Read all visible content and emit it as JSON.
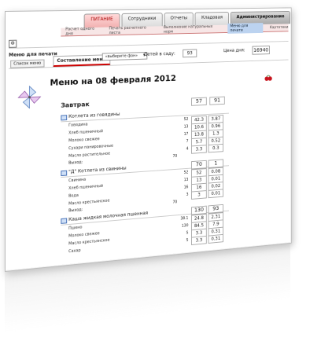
{
  "tabs": [
    {
      "label": "ПИТАНИЕ",
      "active": true
    },
    {
      "label": "Сотрудники"
    },
    {
      "label": "Отчеты"
    },
    {
      "label": "Кладовая"
    },
    {
      "label": "Администрирование",
      "admin": true
    }
  ],
  "subnav": [
    {
      "label": "Расчет одного дня"
    },
    {
      "label": "Печать расчетного листа"
    },
    {
      "label": "Выполнение натуральных норм"
    },
    {
      "label": "Меню для печати",
      "selected": true
    },
    {
      "label": "Картотеки"
    }
  ],
  "nav": {
    "section_label": "Меню для печати",
    "list_button": "Список меню",
    "compose_button": "Составление меню",
    "select_value": "«выберите фон»",
    "kids_label": "Детей в саду:",
    "kids_value": "93",
    "price_label": "Цена дня:",
    "price_value": "16940"
  },
  "menu": {
    "title": "Меню на 08 февраля 2012",
    "meal": "Завтрак",
    "header_values": [
      "57",
      "91"
    ],
    "dishes": [
      {
        "name": "Котлета из говядины",
        "values": [
          "",
          ""
        ],
        "rows": [
          {
            "name": "Говядина",
            "qty": "52",
            "v1": "42.3",
            "v2": "3.87"
          },
          {
            "name": "Хлеб пшеничный",
            "qty": "13",
            "v1": "10.6",
            "v2": "0.96"
          },
          {
            "name": "Молоко свежее",
            "qty": "17",
            "v1": "13.8",
            "v2": "1.3"
          },
          {
            "name": "Сухари панировочные",
            "qty": "7",
            "v1": "5.7",
            "v2": "0.52"
          },
          {
            "name": "Масло растительное",
            "qty": "4",
            "v1": "3.3",
            "v2": "0.3"
          }
        ],
        "output_label": "Выход:",
        "output_value": "70"
      },
      {
        "name": "\"Д\" Котлета из свинины",
        "values": [
          "70",
          "1"
        ],
        "rows": [
          {
            "name": "Свинина",
            "qty": "52",
            "v1": "52",
            "v2": "0.08"
          },
          {
            "name": "Хлеб пшеничный",
            "qty": "13",
            "v1": "13",
            "v2": "0.01"
          },
          {
            "name": "Вода",
            "qty": "16",
            "v1": "16",
            "v2": "0.02"
          },
          {
            "name": "Масло крестьянское",
            "qty": "3",
            "v1": "3",
            "v2": "0.01"
          }
        ],
        "output_label": "Выход:",
        "output_value": "70"
      },
      {
        "name": "Каша жидкая молочная пшенная",
        "values": [
          "130",
          "93"
        ],
        "rows": [
          {
            "name": "Пшено",
            "qty": "38.1",
            "v1": "24.8",
            "v2": "2.31"
          },
          {
            "name": "Молоко свежее",
            "qty": "130",
            "v1": "84.5",
            "v2": "7.9"
          },
          {
            "name": "Масло крестьянское",
            "qty": "5",
            "v1": "3.3",
            "v2": "0.31"
          },
          {
            "name": "Сахар",
            "qty": "5",
            "v1": "3.3",
            "v2": "0.31"
          }
        ]
      }
    ]
  },
  "icons": {
    "logo": "pinwheel-logo-icon",
    "cherry": "cherry-icon",
    "gear": "settings-icon",
    "dish": "dish-icon"
  }
}
